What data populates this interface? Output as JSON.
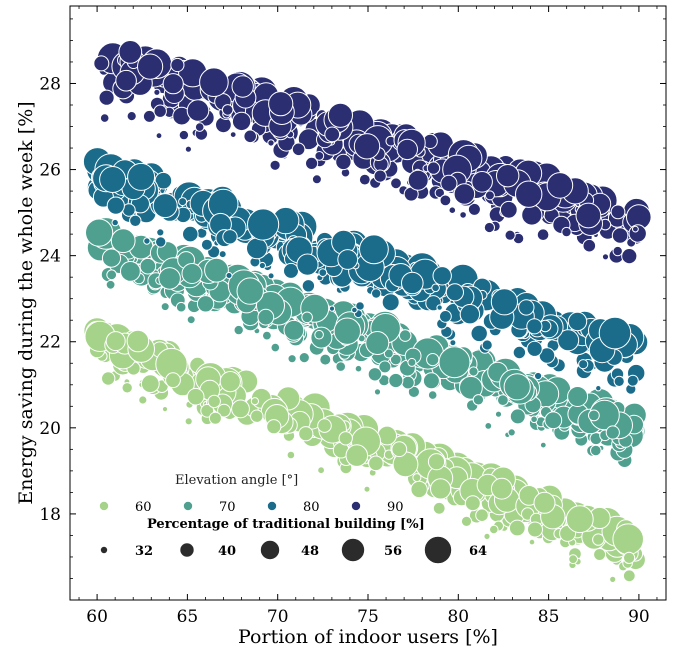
{
  "chart_data": {
    "type": "scatter",
    "title": "",
    "xlabel": "Portion of indoor users [%]",
    "ylabel": "Energy saving during the whole week [%]",
    "xlim": [
      58.5,
      91.5
    ],
    "ylim": [
      16.0,
      29.8
    ],
    "x_ticks": [
      60,
      65,
      70,
      75,
      80,
      85,
      90
    ],
    "y_ticks": [
      18,
      20,
      22,
      24,
      26,
      28
    ],
    "hue_legend": {
      "title": "Elevation angle [°]",
      "entries": [
        {
          "label": "60",
          "color": "#a6d38a"
        },
        {
          "label": "70",
          "color": "#4fa08f"
        },
        {
          "label": "80",
          "color": "#1b6b8a"
        },
        {
          "label": "90",
          "color": "#2b2f72"
        }
      ]
    },
    "size_legend": {
      "title": "Percentage of traditional building [%]",
      "entries": [
        {
          "label": "32",
          "value": 32
        },
        {
          "label": "40",
          "value": 40
        },
        {
          "label": "48",
          "value": 48
        },
        {
          "label": "56",
          "value": 56
        },
        {
          "label": "64",
          "value": 64
        }
      ]
    },
    "series": [
      {
        "name": "60",
        "color": "#a6d38a",
        "trend_start": [
          60,
          22.4
        ],
        "trend_end": [
          90,
          17.6
        ],
        "spread": 1.5
      },
      {
        "name": "70",
        "color": "#4fa08f",
        "trend_start": [
          60,
          24.7
        ],
        "trend_end": [
          90,
          20.3
        ],
        "spread": 1.6
      },
      {
        "name": "80",
        "color": "#1b6b8a",
        "trend_start": [
          60,
          26.3
        ],
        "trend_end": [
          90,
          22.1
        ],
        "spread": 1.7
      },
      {
        "name": "90",
        "color": "#2b2f72",
        "trend_start": [
          60,
          29.0
        ],
        "trend_end": [
          90,
          25.2
        ],
        "spread": 1.9
      }
    ],
    "grid": false,
    "legend_position": "bottom-left"
  }
}
